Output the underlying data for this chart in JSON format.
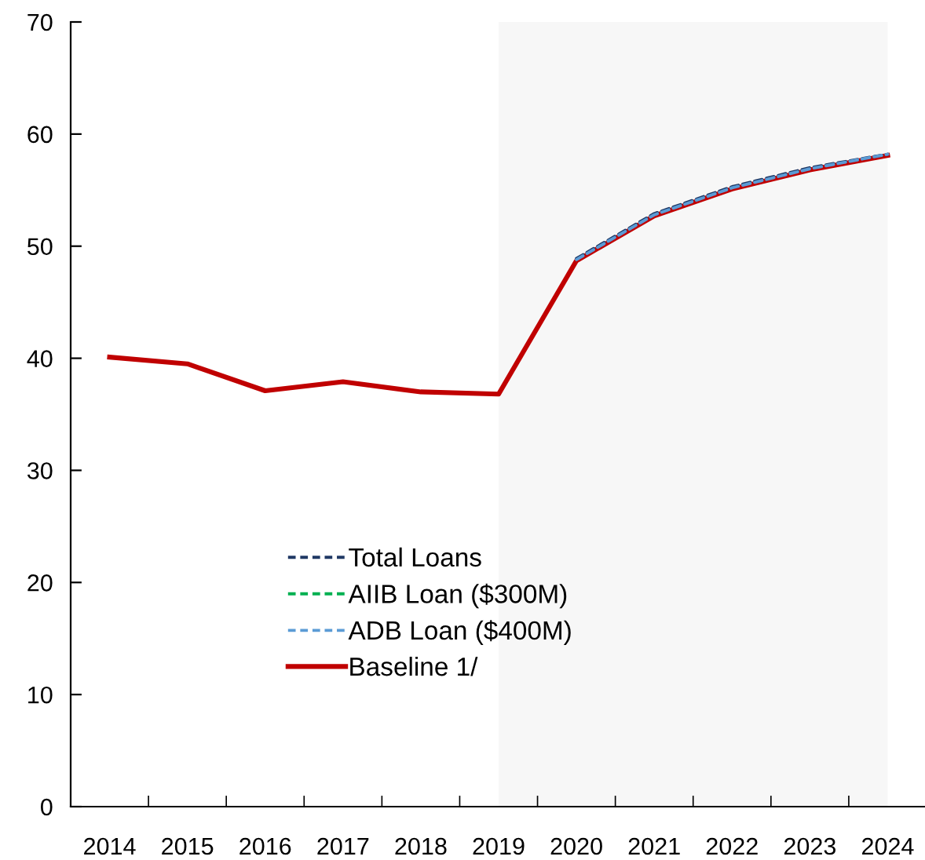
{
  "chart_data": {
    "type": "line",
    "categories": [
      "2014",
      "2015",
      "2016",
      "2017",
      "2018",
      "2019",
      "2020",
      "2021",
      "2022",
      "2023",
      "2024"
    ],
    "series": [
      {
        "name": "Total Loans",
        "color": "#1f3864",
        "line_style": "dashed",
        "values": [
          null,
          null,
          null,
          null,
          null,
          null,
          48.9,
          52.9,
          55.3,
          57.0,
          58.2
        ]
      },
      {
        "name": "AIIB Loan ($300M)",
        "color": "#00b050",
        "line_style": "dashed",
        "values": [
          null,
          null,
          null,
          null,
          null,
          null,
          null,
          null,
          null,
          null,
          null
        ]
      },
      {
        "name": "ADB Loan ($400M)",
        "color": "#5b9bd5",
        "line_style": "dashed",
        "values": [
          null,
          null,
          null,
          null,
          null,
          null,
          48.8,
          52.8,
          55.2,
          56.9,
          58.2
        ]
      },
      {
        "name": "Baseline 1/",
        "color": "#c00000",
        "line_style": "solid",
        "values": [
          40.1,
          39.5,
          37.1,
          37.9,
          37.0,
          36.8,
          48.7,
          52.7,
          55.1,
          56.8,
          58.1
        ]
      }
    ],
    "ylim": [
      0,
      70
    ],
    "yticks": [
      0,
      10,
      20,
      30,
      40,
      50,
      60,
      70
    ],
    "bands": [
      {
        "axis": "x",
        "from": "2019",
        "to": "2024",
        "color": "#f7f7f7"
      }
    ],
    "grid": false,
    "legend": "bottom",
    "marker": "none"
  }
}
